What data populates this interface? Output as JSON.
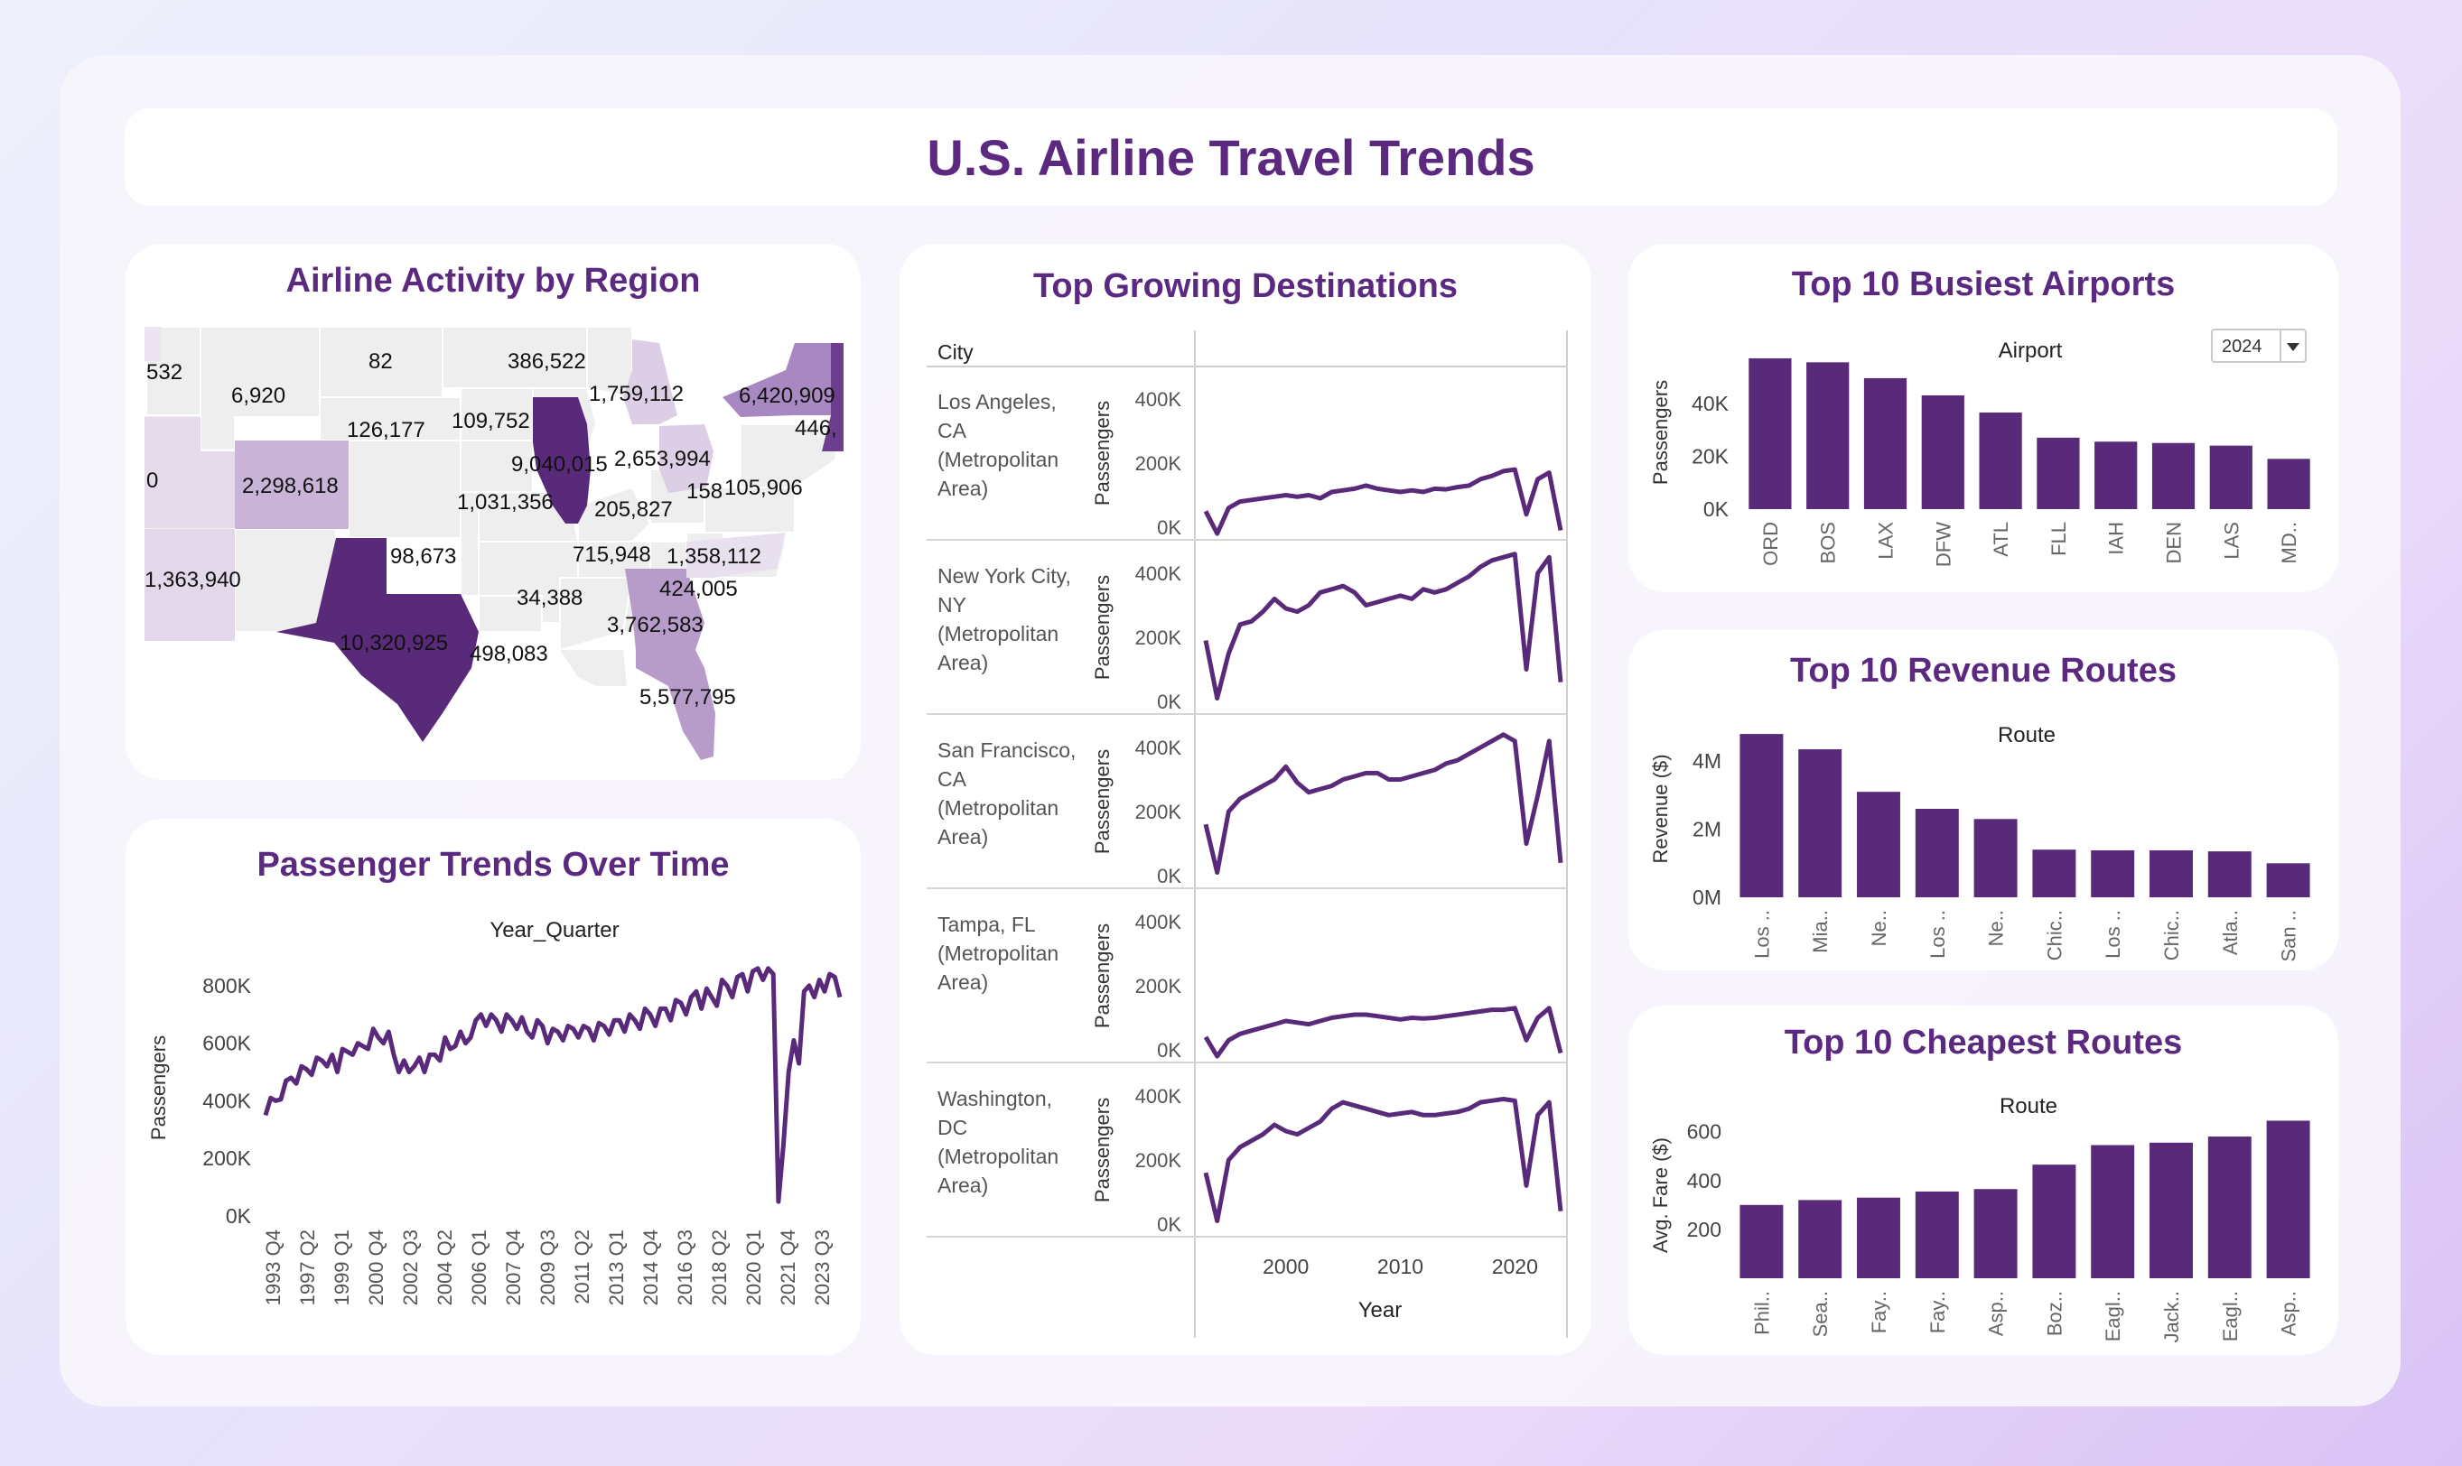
{
  "title": "U.S. Airline Travel Trends",
  "colors": {
    "accent": "#5b2a80",
    "mark": "#5a2a7a"
  },
  "region": {
    "title": "Airline Activity by Region",
    "labels": [
      "532",
      "6,920",
      "82",
      "386,522",
      "1,759,112",
      "6,420,909",
      "446,",
      "126,177",
      "109,752",
      "9,040,015",
      "2,653,994",
      "158",
      "105,906",
      "0",
      "2,298,618",
      "1,031,356",
      "205,827",
      "98,673",
      "715,948",
      "1,358,112",
      "1,363,940",
      "34,388",
      "424,005",
      "3,762,583",
      "10,320,925",
      "498,083",
      "5,577,795"
    ]
  },
  "trend": {
    "title": "Passenger Trends Over Time"
  },
  "growing": {
    "title": "Top Growing Destinations",
    "col_header": "City",
    "cities": [
      "Los Angeles, CA (Metropolitan Area)",
      "New York City, NY (Metropolitan Area)",
      "San Francisco, CA (Metropolitan Area)",
      "Tampa, FL (Metropolitan Area)",
      "Washington, DC (Metropolitan Area)"
    ]
  },
  "airports": {
    "title": "Top 10 Busiest Airports",
    "filter_value": "2024"
  },
  "revenue": {
    "title": "Top 10 Revenue Routes"
  },
  "cheapest": {
    "title": "Top 10 Cheapest Routes"
  },
  "chart_data": [
    {
      "type": "line",
      "title": "Passenger Trends Over Time",
      "xlabel": "Year_Quarter",
      "ylabel": "Passengers",
      "y_ticks": [
        "800K",
        "600K",
        "400K",
        "200K",
        "0K"
      ],
      "ylim": [
        0,
        900000
      ],
      "x_ticks": [
        "1993 Q4",
        "1997 Q2",
        "1999 Q1",
        "2000 Q4",
        "2002 Q3",
        "2004 Q2",
        "2006 Q1",
        "2007 Q4",
        "2009 Q3",
        "2011 Q2",
        "2013 Q1",
        "2014 Q4",
        "2016 Q3",
        "2018 Q2",
        "2020 Q1",
        "2021 Q4",
        "2023 Q3"
      ],
      "series": [
        {
          "values": [
            350000,
            410000,
            400000,
            405000,
            470000,
            480000,
            460000,
            520000,
            510000,
            490000,
            550000,
            540000,
            520000,
            560000,
            500000,
            580000,
            570000,
            560000,
            600000,
            590000,
            580000,
            650000,
            620000,
            600000,
            640000,
            560000,
            500000,
            540000,
            500000,
            520000,
            550000,
            500000,
            560000,
            560000,
            540000,
            620000,
            580000,
            590000,
            640000,
            600000,
            620000,
            680000,
            700000,
            660000,
            700000,
            680000,
            640000,
            700000,
            680000,
            650000,
            690000,
            640000,
            620000,
            680000,
            660000,
            600000,
            650000,
            640000,
            610000,
            660000,
            650000,
            620000,
            660000,
            650000,
            610000,
            670000,
            660000,
            630000,
            680000,
            680000,
            640000,
            700000,
            680000,
            650000,
            720000,
            700000,
            660000,
            720000,
            720000,
            680000,
            750000,
            740000,
            700000,
            760000,
            780000,
            720000,
            790000,
            760000,
            730000,
            820000,
            800000,
            760000,
            830000,
            840000,
            780000,
            850000,
            860000,
            820000,
            860000,
            840000,
            50000,
            250000,
            500000,
            610000,
            530000,
            780000,
            800000,
            760000,
            820000,
            780000,
            840000,
            830000,
            760000
          ]
        }
      ]
    },
    {
      "type": "line",
      "title": "Top Growing Destinations",
      "xlabel": "Year",
      "ylabel": "Passengers",
      "x_ticks": [
        2000,
        2010,
        2020
      ],
      "xlim": [
        1993,
        2024
      ],
      "ylim": [
        0,
        400000
      ],
      "y_ticks": [
        "400K",
        "200K",
        "0K"
      ],
      "x": [
        1993,
        1994,
        1995,
        1996,
        1997,
        1998,
        1999,
        2000,
        2001,
        2002,
        2003,
        2004,
        2005,
        2006,
        2007,
        2008,
        2009,
        2010,
        2011,
        2012,
        2013,
        2014,
        2015,
        2016,
        2017,
        2018,
        2019,
        2020,
        2021,
        2022,
        2023,
        2024
      ],
      "series": [
        {
          "name": "Los Angeles, CA (Metropolitan Area)",
          "values": [
            50000,
            -20000,
            60000,
            80000,
            85000,
            90000,
            95000,
            100000,
            95000,
            100000,
            90000,
            110000,
            115000,
            120000,
            130000,
            120000,
            115000,
            110000,
            115000,
            110000,
            120000,
            118000,
            125000,
            130000,
            150000,
            160000,
            175000,
            180000,
            40000,
            150000,
            170000,
            -10000
          ]
        },
        {
          "name": "New York City, NY (Metropolitan Area)",
          "values": [
            190000,
            10000,
            150000,
            240000,
            250000,
            280000,
            320000,
            290000,
            280000,
            300000,
            340000,
            350000,
            360000,
            340000,
            300000,
            310000,
            320000,
            330000,
            320000,
            350000,
            340000,
            350000,
            370000,
            390000,
            420000,
            440000,
            450000,
            460000,
            100000,
            400000,
            450000,
            60000
          ]
        },
        {
          "name": "San Francisco, CA (Metropolitan Area)",
          "values": [
            160000,
            10000,
            200000,
            240000,
            260000,
            280000,
            300000,
            340000,
            290000,
            260000,
            270000,
            280000,
            300000,
            310000,
            320000,
            320000,
            300000,
            300000,
            310000,
            320000,
            330000,
            350000,
            360000,
            380000,
            400000,
            420000,
            440000,
            420000,
            100000,
            250000,
            420000,
            40000
          ]
        },
        {
          "name": "Tampa, FL (Metropolitan Area)",
          "values": [
            40000,
            -20000,
            30000,
            50000,
            60000,
            70000,
            80000,
            90000,
            85000,
            80000,
            90000,
            100000,
            105000,
            110000,
            110000,
            105000,
            100000,
            95000,
            100000,
            98000,
            100000,
            105000,
            110000,
            115000,
            120000,
            125000,
            125000,
            130000,
            30000,
            100000,
            130000,
            -10000
          ]
        },
        {
          "name": "Washington, DC (Metropolitan Area)",
          "values": [
            160000,
            10000,
            200000,
            240000,
            260000,
            280000,
            310000,
            290000,
            280000,
            300000,
            320000,
            360000,
            380000,
            370000,
            360000,
            350000,
            340000,
            345000,
            350000,
            340000,
            340000,
            345000,
            350000,
            360000,
            380000,
            385000,
            390000,
            385000,
            120000,
            340000,
            380000,
            40000
          ]
        }
      ]
    },
    {
      "type": "bar",
      "title": "Top 10 Busiest Airports",
      "xlabel": "Airport",
      "ylabel": "Passengers",
      "y_ticks": [
        "40K",
        "20K",
        "0K"
      ],
      "ylim": [
        0,
        58000
      ],
      "categories": [
        "ORD",
        "BOS",
        "LAX",
        "DFW",
        "ATL",
        "FLL",
        "IAH",
        "DEN",
        "LAS",
        "MD.."
      ],
      "values": [
        57000,
        55500,
        49500,
        43000,
        36500,
        27000,
        25500,
        25000,
        24000,
        19000
      ]
    },
    {
      "type": "bar",
      "title": "Top 10 Revenue Routes",
      "xlabel": "Route",
      "ylabel": "Revenue ($)",
      "y_ticks": [
        "4M",
        "2M",
        "0M"
      ],
      "ylim": [
        0,
        5200000
      ],
      "categories": [
        "Los ..",
        "Mia..",
        "Ne..",
        "Los ..",
        "Ne..",
        "Chic..",
        "Los ..",
        "Chic..",
        "Atla..",
        "San .."
      ],
      "values": [
        4800000,
        4350000,
        3100000,
        2600000,
        2300000,
        1400000,
        1380000,
        1380000,
        1350000,
        1000000
      ]
    },
    {
      "type": "bar",
      "title": "Top 10 Cheapest Routes",
      "xlabel": "Route",
      "ylabel": "Avg. Fare ($)",
      "y_ticks": [
        "600",
        "400",
        "200"
      ],
      "ylim": [
        0,
        680
      ],
      "categories": [
        "Phil..",
        "Sea..",
        "Fay..",
        "Fay..",
        "Asp..",
        "Boz..",
        "Eagl..",
        "Jack..",
        "Eagl..",
        "Asp.."
      ],
      "values": [
        300,
        320,
        330,
        355,
        365,
        465,
        545,
        555,
        580,
        645
      ]
    }
  ]
}
